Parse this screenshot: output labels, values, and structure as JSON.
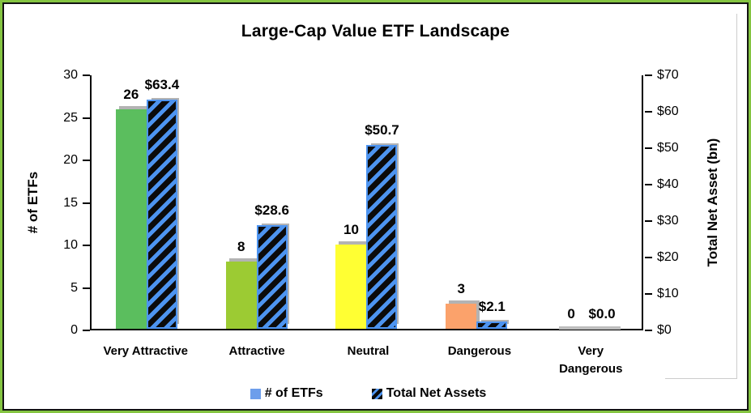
{
  "chart_data": {
    "type": "bar",
    "title": "Large-Cap Value ETF Landscape",
    "categories": [
      "Very Attractive",
      "Attractive",
      "Neutral",
      "Dangerous",
      "Very Dangerous"
    ],
    "series": [
      {
        "name": "# of ETFs",
        "axis": "left",
        "values": [
          26,
          8,
          10,
          3,
          0
        ],
        "labels": [
          "26",
          "8",
          "10",
          "3",
          "0"
        ],
        "point_colors": [
          "#5BBE5E",
          "#9CCB33",
          "#FFFF33",
          "#FBA26B",
          "#BFBFBF"
        ]
      },
      {
        "name": "Total Net Assets",
        "axis": "right",
        "values": [
          63.4,
          28.6,
          50.7,
          2.1,
          0
        ],
        "labels": [
          "$63.4",
          "$28.6",
          "$50.7",
          "$2.1",
          "$0.0"
        ],
        "pattern": {
          "style": "wide-upward-diagonal-stripes",
          "fg": "#4D94F0",
          "bg": "#0B0B0B"
        }
      }
    ],
    "left_axis": {
      "label": "# of ETFs",
      "min": 0,
      "max": 30,
      "ticks": [
        0,
        5,
        10,
        15,
        20,
        25,
        30
      ],
      "tick_prefix": ""
    },
    "right_axis": {
      "label": "Total Net Asset (bn)",
      "min": 0,
      "max": 70,
      "ticks": [
        0,
        10,
        20,
        30,
        40,
        50,
        60,
        70
      ],
      "tick_prefix": "$"
    },
    "legend": [
      {
        "label": "# of ETFs",
        "swatch": "solid",
        "color": "#6D9EEB"
      },
      {
        "label": "Total Net Assets",
        "swatch": "striped"
      }
    ],
    "layout_hints": {
      "grid": false,
      "legend_position": "bottom",
      "bar_shadow": "up-right gray",
      "frame_colors": [
        "#84C441",
        "#121212"
      ]
    }
  }
}
